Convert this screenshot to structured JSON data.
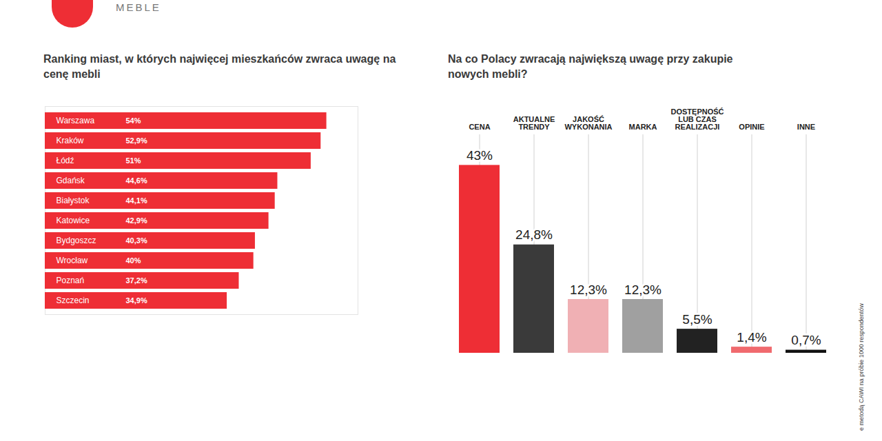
{
  "brand": "MEBLE",
  "footnote": "e metodą CAWI na próbie 1000 respondentów",
  "chart_data": [
    {
      "type": "bar",
      "orientation": "horizontal",
      "title": "Ranking miast, w których najwięcej mieszkańców zwraca uwagę na cenę mebli",
      "categories": [
        "Warszawa",
        "Kraków",
        "Łódź",
        "Gdańsk",
        "Białystok",
        "Katowice",
        "Bydgoszcz",
        "Wrocław",
        "Poznań",
        "Szczecin"
      ],
      "values": [
        54,
        52.9,
        51,
        44.6,
        44.1,
        42.9,
        40.3,
        40,
        37.2,
        34.9
      ],
      "value_labels": [
        "54%",
        "52,9%",
        "51%",
        "44,6%",
        "44,1%",
        "42,9%",
        "40,3%",
        "40%",
        "37,2%",
        "34,9%"
      ],
      "color": "#ee2e35",
      "xlim": [
        0,
        60
      ],
      "data_labels": true,
      "tick_labels": "y"
    },
    {
      "type": "bar",
      "title": "Na co Polacy zwracają największą uwagę przy zakupie nowych mebli?",
      "categories": [
        "CENA",
        "AKTUALNE TRENDY",
        "JAKOŚĆ WYKONANIA",
        "MARKA",
        "DOSTĘPNOŚĆ LUB CZAS REALIZACJI",
        "OPINIE",
        "INNE"
      ],
      "values": [
        43,
        24.8,
        12.3,
        12.3,
        5.5,
        1.4,
        0.7
      ],
      "value_labels": [
        "43%",
        "24,8%",
        "12,3%",
        "12,3%",
        "5,5%",
        "1,4%",
        "0,7%"
      ],
      "colors": [
        "#ee2e35",
        "#3a3a3a",
        "#f0b0b4",
        "#a0a0a0",
        "#222222",
        "#f06a6e",
        "#111111"
      ],
      "ylim": [
        0,
        50
      ],
      "data_labels": true,
      "tick_labels": "x"
    }
  ]
}
